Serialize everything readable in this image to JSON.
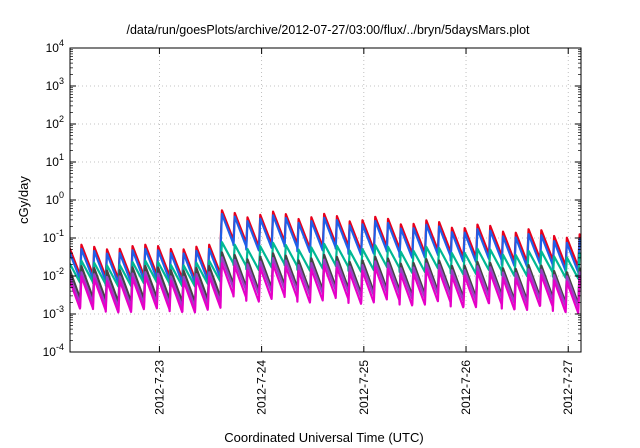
{
  "chart_data": {
    "type": "line",
    "title": "/data/run/goesPlots/archive/2012-07-27/03:00/flux/../bryn/5daysMars.plot",
    "xlabel": "Coordinated Universal Time (UTC)",
    "ylabel": "cGy/day",
    "y_scale": "log",
    "ylim": [
      0.0001,
      10000
    ],
    "y_ticks": [
      {
        "value": 0.0001,
        "base": "10",
        "exp": "-4"
      },
      {
        "value": 0.001,
        "base": "10",
        "exp": "-3"
      },
      {
        "value": 0.01,
        "base": "10",
        "exp": "-2"
      },
      {
        "value": 0.1,
        "base": "10",
        "exp": "-1"
      },
      {
        "value": 1,
        "base": "10",
        "exp": "0"
      },
      {
        "value": 10,
        "base": "10",
        "exp": "1"
      },
      {
        "value": 100,
        "base": "10",
        "exp": "2"
      },
      {
        "value": 1000,
        "base": "10",
        "exp": "3"
      },
      {
        "value": 10000,
        "base": "10",
        "exp": "4"
      }
    ],
    "xlim": [
      "2012-07-22 03:00",
      "2012-07-27 03:00"
    ],
    "x_ticks": [
      "2012-7-23",
      "2012-7-24",
      "2012-7-25",
      "2012-7-26",
      "2012-7-27"
    ],
    "grid": true,
    "legend": "none",
    "sawtooth_period_hours": 3,
    "series": [
      {
        "color": "#e8001c",
        "peak_before": 0.058,
        "peak_after": 0.45,
        "peak_end": 0.11,
        "decay_factor": 0.17
      },
      {
        "color": "#1f5fe8",
        "peak_before": 0.045,
        "peak_after": 0.36,
        "peak_end": 0.08,
        "decay_factor": 0.17
      },
      {
        "color": "#00b894",
        "peak_before": 0.022,
        "peak_after": 0.065,
        "peak_end": 0.035,
        "decay_factor": 0.28
      },
      {
        "color": "#444444",
        "peak_before": 0.016,
        "peak_after": 0.035,
        "peak_end": 0.014,
        "decay_factor": 0.15
      },
      {
        "color": "#9a3fc4",
        "peak_before": 0.011,
        "peak_after": 0.026,
        "peak_end": 0.011,
        "decay_factor": 0.16
      },
      {
        "color": "#e600c8",
        "peak_before": 0.0085,
        "peak_after": 0.018,
        "peak_end": 0.008,
        "decay_factor": 0.15
      }
    ]
  }
}
